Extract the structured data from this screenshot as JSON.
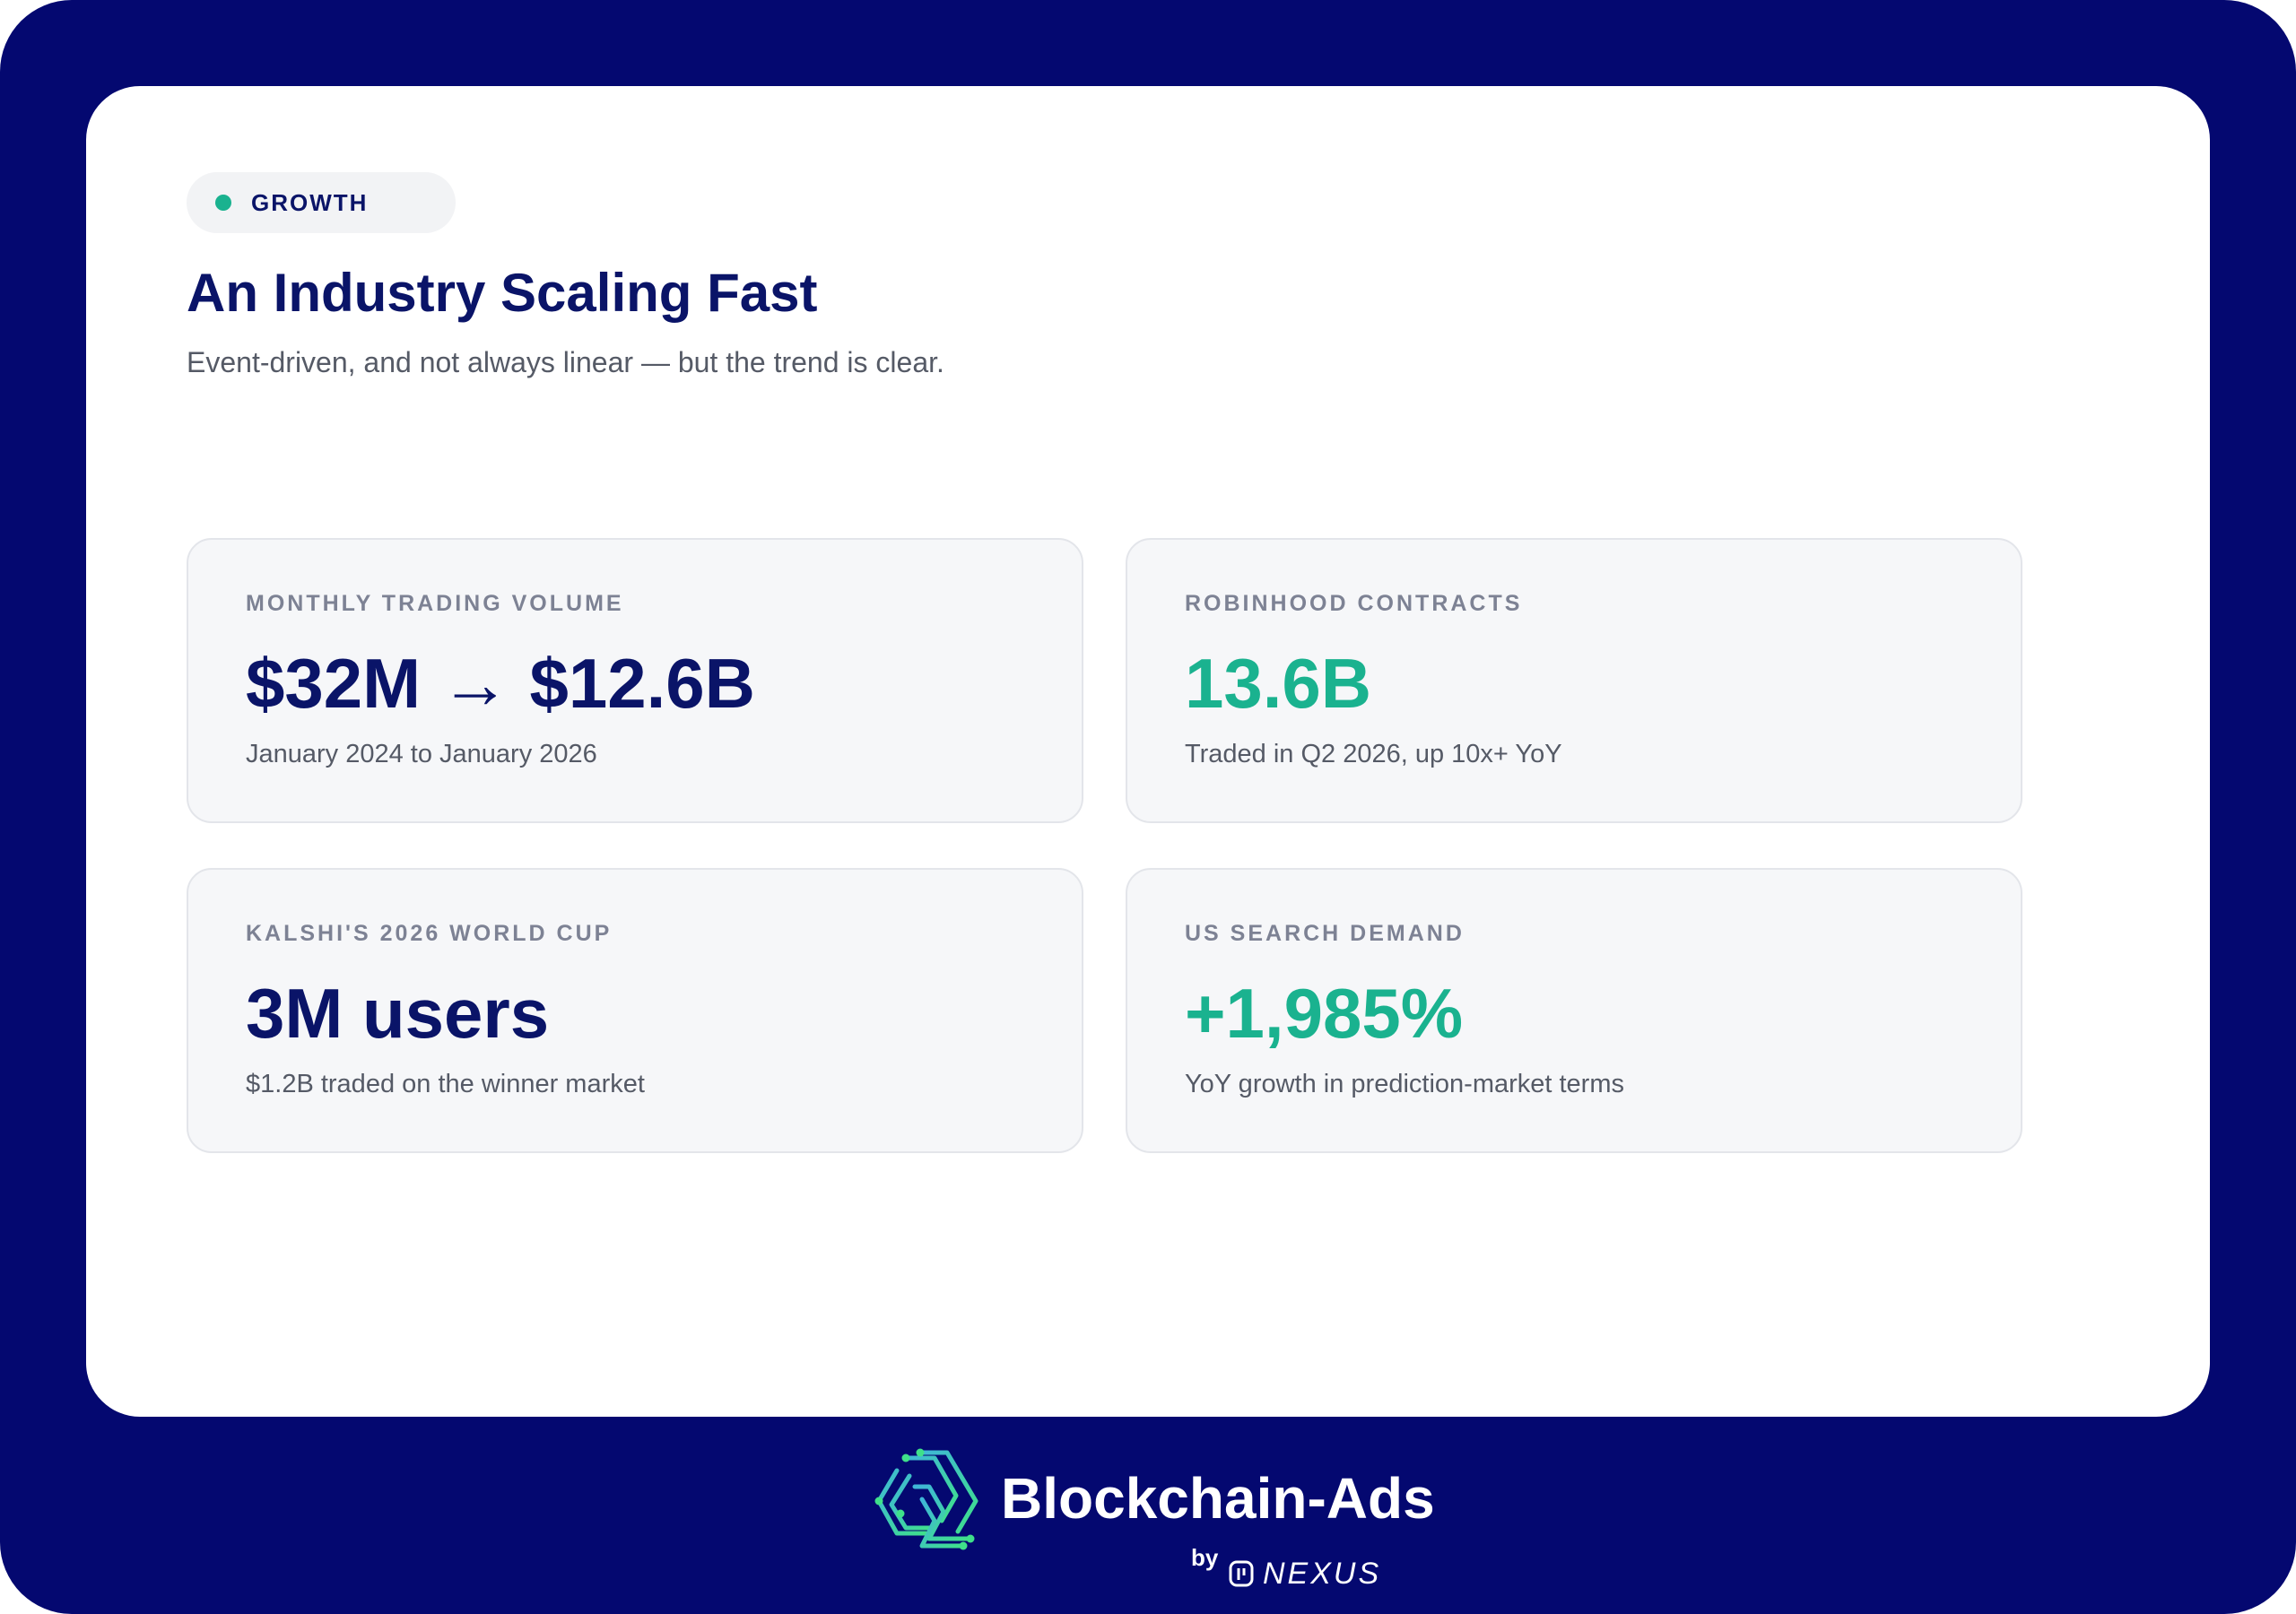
{
  "badge": {
    "label": "GROWTH",
    "dot_color": "#1ab28f"
  },
  "heading": {
    "title": "An Industry Scaling Fast",
    "subtitle": "Event-driven, and not always linear — but the trend is clear."
  },
  "stats": [
    {
      "label": "MONTHLY TRADING VOLUME",
      "value": "$32M → $12.6B",
      "note": "January 2024 to January 2026",
      "value_color": "#0a1468"
    },
    {
      "label": "ROBINHOOD CONTRACTS",
      "value": "13.6B",
      "note": "Traded in Q2 2026, up 10x+ YoY",
      "value_color": "#1ab28f"
    },
    {
      "label": "KALSHI'S 2026 WORLD CUP",
      "value": "3M users",
      "note": "$1.2B traded on the winner market",
      "value_color": "#0a1468"
    },
    {
      "label": "US SEARCH DEMAND",
      "value": "+1,985%",
      "note": "YoY growth in prediction-market terms",
      "value_color": "#1ab28f"
    }
  ],
  "footer": {
    "brand": "Blockchain-Ads",
    "by": "by",
    "partner": "NEXUS",
    "logo_icon": "blockchain-ads-logo-icon",
    "partner_icon": "nexus-logo-icon"
  },
  "colors": {
    "frame": "#040870",
    "navy": "#0a1468",
    "teal": "#1ab28f"
  }
}
